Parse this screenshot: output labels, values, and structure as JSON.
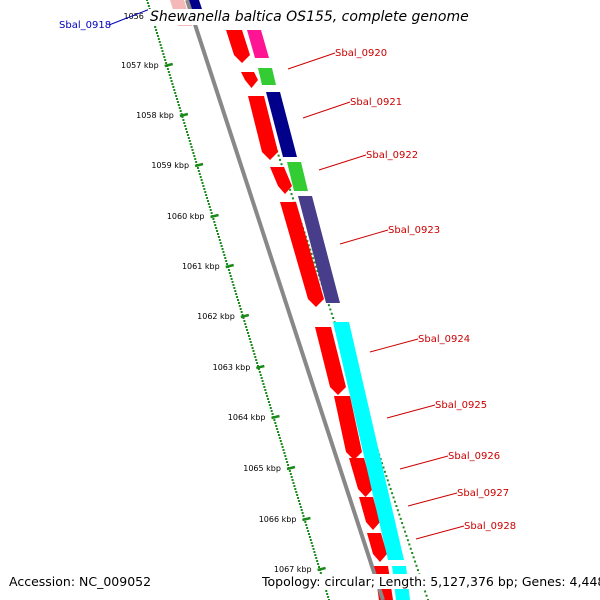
{
  "title": "Shewanella baltica OS155, complete genome",
  "footer": {
    "accession": "Accession: NC_009052",
    "info": "Topology: circular; Length: 5,127,376 bp; Genes: 4,448"
  },
  "ticks": [
    "1056",
    "1057 kbp",
    "1058 kbp",
    "1059 kbp",
    "1060 kbp",
    "1061 kbp",
    "1062 kbp",
    "1063 kbp",
    "1064 kbp",
    "1065 kbp",
    "1066 kbp",
    "1067 kbp"
  ],
  "gene_labels": [
    {
      "text": "Sbal_0918",
      "color": "#0000bb"
    },
    {
      "text": "Sbal_0920",
      "color": "#cc0000"
    },
    {
      "text": "Sbal_0921",
      "color": "#cc0000"
    },
    {
      "text": "Sbal_0922",
      "color": "#cc0000"
    },
    {
      "text": "Sbal_0923",
      "color": "#cc0000"
    },
    {
      "text": "Sbal_0924",
      "color": "#cc0000"
    },
    {
      "text": "Sbal_0925",
      "color": "#cc0000"
    },
    {
      "text": "Sbal_0926",
      "color": "#cc0000"
    },
    {
      "text": "Sbal_0927",
      "color": "#cc0000"
    },
    {
      "text": "Sbal_0928",
      "color": "#cc0000"
    }
  ],
  "colors": {
    "backbone": "#888888",
    "tick_dots": "#1a8a1a",
    "gene_red": "#ff0000",
    "gene_magenta": "#ff1493",
    "gene_navy": "#00008b",
    "gene_green": "#33cc33",
    "gene_slate": "#483d8b",
    "gene_cyan": "#00ffff"
  }
}
